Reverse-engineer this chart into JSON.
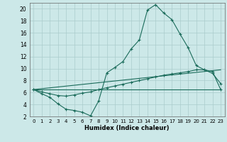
{
  "xlabel": "Humidex (Indice chaleur)",
  "xlim": [
    -0.5,
    23.5
  ],
  "ylim": [
    2,
    21
  ],
  "yticks": [
    2,
    4,
    6,
    8,
    10,
    12,
    14,
    16,
    18,
    20
  ],
  "xticks": [
    0,
    1,
    2,
    3,
    4,
    5,
    6,
    7,
    8,
    9,
    10,
    11,
    12,
    13,
    14,
    15,
    16,
    17,
    18,
    19,
    20,
    21,
    22,
    23
  ],
  "bg_color": "#cce8e8",
  "line_color": "#1a6b5a",
  "grid_color": "#aacccc",
  "line1_x": [
    0,
    1,
    2,
    3,
    4,
    5,
    6,
    7,
    8,
    9,
    10,
    11,
    12,
    13,
    14,
    15,
    16,
    17,
    18,
    19,
    20,
    21,
    22,
    23
  ],
  "line1_y": [
    6.5,
    5.8,
    5.2,
    4.1,
    3.2,
    3.0,
    2.7,
    2.1,
    4.6,
    9.3,
    10.2,
    11.2,
    13.3,
    14.8,
    19.8,
    20.7,
    19.3,
    18.2,
    15.8,
    13.5,
    10.5,
    9.8,
    9.2,
    7.5
  ],
  "line2_x": [
    0,
    1,
    2,
    3,
    4,
    5,
    6,
    7,
    8,
    9,
    10,
    11,
    12,
    13,
    14,
    15,
    16,
    17,
    18,
    19,
    20,
    21,
    22,
    23
  ],
  "line2_y": [
    6.5,
    6.1,
    5.8,
    5.5,
    5.4,
    5.6,
    5.9,
    6.1,
    6.5,
    6.8,
    7.1,
    7.4,
    7.7,
    8.0,
    8.3,
    8.6,
    8.9,
    9.1,
    9.3,
    9.5,
    9.8,
    9.8,
    9.5,
    6.5
  ],
  "line3_x": [
    0,
    23
  ],
  "line3_y": [
    6.5,
    9.8
  ],
  "line4_x": [
    0,
    23
  ],
  "line4_y": [
    6.5,
    6.5
  ]
}
